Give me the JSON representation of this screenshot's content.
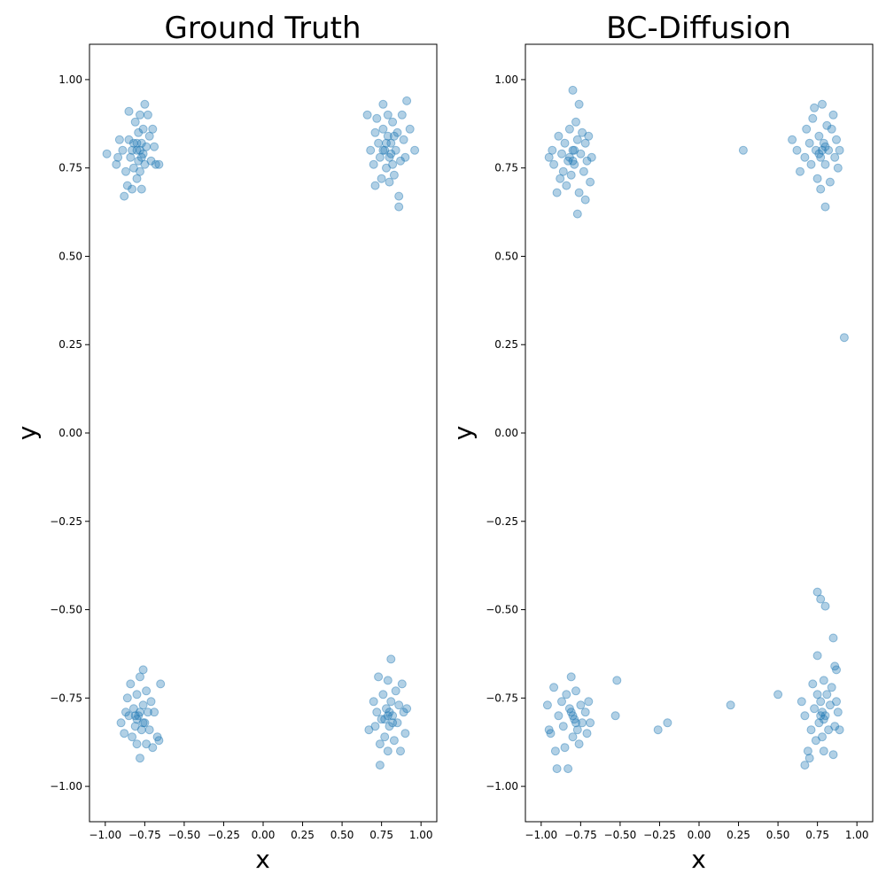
{
  "chart_data": [
    {
      "type": "scatter",
      "title": "Ground Truth",
      "xlabel": "x",
      "ylabel": "y",
      "xlim": [
        -1.1,
        1.1
      ],
      "ylim": [
        -1.1,
        1.1
      ],
      "xticks": [
        -1.0,
        -0.75,
        -0.5,
        -0.25,
        0.0,
        0.25,
        0.5,
        0.75,
        1.0
      ],
      "xtick_labels": [
        "−1.00",
        "−0.75",
        "−0.50",
        "−0.25",
        "0.00",
        "0.25",
        "0.50",
        "0.75",
        "1.00"
      ],
      "yticks": [
        -1.0,
        -0.75,
        -0.5,
        -0.25,
        0.0,
        0.25,
        0.5,
        0.75,
        1.0
      ],
      "ytick_labels": [
        "−1.00",
        "−0.75",
        "−0.50",
        "−0.25",
        "0.00",
        "0.25",
        "0.50",
        "0.75",
        "1.00"
      ],
      "grid": false,
      "color": "#1f77b4",
      "opacity": 0.35,
      "points": [
        [
          -0.99,
          0.79
        ],
        [
          -0.93,
          0.76
        ],
        [
          -0.92,
          0.78
        ],
        [
          -0.91,
          0.83
        ],
        [
          -0.89,
          0.8
        ],
        [
          -0.88,
          0.67
        ],
        [
          -0.87,
          0.74
        ],
        [
          -0.86,
          0.7
        ],
        [
          -0.85,
          0.91
        ],
        [
          -0.85,
          0.83
        ],
        [
          -0.84,
          0.78
        ],
        [
          -0.83,
          0.69
        ],
        [
          -0.82,
          0.82
        ],
        [
          -0.82,
          0.75
        ],
        [
          -0.81,
          0.88
        ],
        [
          -0.8,
          0.72
        ],
        [
          -0.8,
          0.8
        ],
        [
          -0.79,
          0.85
        ],
        [
          -0.79,
          0.77
        ],
        [
          -0.78,
          0.9
        ],
        [
          -0.78,
          0.74
        ],
        [
          -0.77,
          0.82
        ],
        [
          -0.77,
          0.69
        ],
        [
          -0.76,
          0.79
        ],
        [
          -0.76,
          0.86
        ],
        [
          -0.75,
          0.93
        ],
        [
          -0.75,
          0.76
        ],
        [
          -0.74,
          0.81
        ],
        [
          -0.73,
          0.9
        ],
        [
          -0.72,
          0.84
        ],
        [
          -0.71,
          0.77
        ],
        [
          -0.7,
          0.86
        ],
        [
          -0.69,
          0.81
        ],
        [
          -0.68,
          0.76
        ],
        [
          -0.66,
          0.76
        ],
        [
          -0.8,
          0.82
        ],
        [
          -0.78,
          0.8
        ],
        [
          -0.83,
          0.8
        ],
        [
          -0.77,
          0.78
        ],
        [
          0.66,
          0.9
        ],
        [
          0.68,
          0.8
        ],
        [
          0.7,
          0.76
        ],
        [
          0.71,
          0.85
        ],
        [
          0.71,
          0.7
        ],
        [
          0.72,
          0.89
        ],
        [
          0.73,
          0.82
        ],
        [
          0.74,
          0.78
        ],
        [
          0.75,
          0.72
        ],
        [
          0.76,
          0.86
        ],
        [
          0.76,
          0.93
        ],
        [
          0.77,
          0.8
        ],
        [
          0.78,
          0.75
        ],
        [
          0.79,
          0.9
        ],
        [
          0.79,
          0.84
        ],
        [
          0.8,
          0.78
        ],
        [
          0.8,
          0.71
        ],
        [
          0.81,
          0.82
        ],
        [
          0.82,
          0.88
        ],
        [
          0.82,
          0.76
        ],
        [
          0.83,
          0.73
        ],
        [
          0.84,
          0.8
        ],
        [
          0.85,
          0.85
        ],
        [
          0.86,
          0.67
        ],
        [
          0.86,
          0.64
        ],
        [
          0.87,
          0.77
        ],
        [
          0.88,
          0.9
        ],
        [
          0.89,
          0.83
        ],
        [
          0.9,
          0.78
        ],
        [
          0.91,
          0.94
        ],
        [
          0.93,
          0.86
        ],
        [
          0.96,
          0.8
        ],
        [
          0.78,
          0.82
        ],
        [
          0.81,
          0.79
        ],
        [
          0.83,
          0.84
        ],
        [
          0.76,
          0.8
        ],
        [
          -0.9,
          -0.82
        ],
        [
          -0.88,
          -0.85
        ],
        [
          -0.87,
          -0.79
        ],
        [
          -0.86,
          -0.75
        ],
        [
          -0.85,
          -0.8
        ],
        [
          -0.84,
          -0.71
        ],
        [
          -0.83,
          -0.86
        ],
        [
          -0.82,
          -0.78
        ],
        [
          -0.81,
          -0.83
        ],
        [
          -0.8,
          -0.74
        ],
        [
          -0.8,
          -0.88
        ],
        [
          -0.79,
          -0.8
        ],
        [
          -0.78,
          -0.69
        ],
        [
          -0.78,
          -0.92
        ],
        [
          -0.77,
          -0.84
        ],
        [
          -0.76,
          -0.77
        ],
        [
          -0.76,
          -0.67
        ],
        [
          -0.75,
          -0.82
        ],
        [
          -0.74,
          -0.88
        ],
        [
          -0.74,
          -0.73
        ],
        [
          -0.73,
          -0.79
        ],
        [
          -0.72,
          -0.84
        ],
        [
          -0.71,
          -0.76
        ],
        [
          -0.7,
          -0.89
        ],
        [
          -0.69,
          -0.79
        ],
        [
          -0.67,
          -0.86
        ],
        [
          -0.66,
          -0.87
        ],
        [
          -0.65,
          -0.71
        ],
        [
          -0.8,
          -0.81
        ],
        [
          -0.78,
          -0.79
        ],
        [
          -0.81,
          -0.8
        ],
        [
          -0.76,
          -0.82
        ],
        [
          0.67,
          -0.84
        ],
        [
          0.7,
          -0.76
        ],
        [
          0.71,
          -0.83
        ],
        [
          0.72,
          -0.79
        ],
        [
          0.73,
          -0.69
        ],
        [
          0.74,
          -0.88
        ],
        [
          0.74,
          -0.94
        ],
        [
          0.75,
          -0.81
        ],
        [
          0.76,
          -0.74
        ],
        [
          0.77,
          -0.86
        ],
        [
          0.78,
          -0.78
        ],
        [
          0.79,
          -0.7
        ],
        [
          0.79,
          -0.9
        ],
        [
          0.8,
          -0.83
        ],
        [
          0.81,
          -0.76
        ],
        [
          0.81,
          -0.64
        ],
        [
          0.82,
          -0.8
        ],
        [
          0.83,
          -0.87
        ],
        [
          0.84,
          -0.73
        ],
        [
          0.85,
          -0.82
        ],
        [
          0.86,
          -0.77
        ],
        [
          0.87,
          -0.9
        ],
        [
          0.88,
          -0.71
        ],
        [
          0.89,
          -0.79
        ],
        [
          0.9,
          -0.85
        ],
        [
          0.91,
          -0.78
        ],
        [
          0.79,
          -0.8
        ],
        [
          0.8,
          -0.79
        ],
        [
          0.77,
          -0.81
        ],
        [
          0.82,
          -0.82
        ]
      ]
    },
    {
      "type": "scatter",
      "title": "BC-Diffusion",
      "xlabel": "x",
      "ylabel": "y",
      "xlim": [
        -1.1,
        1.1
      ],
      "ylim": [
        -1.1,
        1.1
      ],
      "xticks": [
        -1.0,
        -0.75,
        -0.5,
        -0.25,
        0.0,
        0.25,
        0.5,
        0.75,
        1.0
      ],
      "xtick_labels": [
        "−1.00",
        "−0.75",
        "−0.50",
        "−0.25",
        "0.00",
        "0.25",
        "0.50",
        "0.75",
        "1.00"
      ],
      "yticks": [
        -1.0,
        -0.75,
        -0.5,
        -0.25,
        0.0,
        0.25,
        0.5,
        0.75,
        1.0
      ],
      "ytick_labels": [
        "−1.00",
        "−0.75",
        "−0.50",
        "−0.25",
        "0.00",
        "0.25",
        "0.50",
        "0.75",
        "1.00"
      ],
      "grid": false,
      "color": "#1f77b4",
      "opacity": 0.35,
      "points": [
        [
          -0.95,
          0.78
        ],
        [
          -0.93,
          0.8
        ],
        [
          -0.92,
          0.76
        ],
        [
          -0.9,
          0.68
        ],
        [
          -0.89,
          0.84
        ],
        [
          -0.88,
          0.72
        ],
        [
          -0.87,
          0.79
        ],
        [
          -0.86,
          0.74
        ],
        [
          -0.85,
          0.82
        ],
        [
          -0.84,
          0.7
        ],
        [
          -0.83,
          0.77
        ],
        [
          -0.82,
          0.86
        ],
        [
          -0.81,
          0.73
        ],
        [
          -0.8,
          0.97
        ],
        [
          -0.8,
          0.8
        ],
        [
          -0.79,
          0.76
        ],
        [
          -0.78,
          0.88
        ],
        [
          -0.77,
          0.83
        ],
        [
          -0.77,
          0.62
        ],
        [
          -0.76,
          0.93
        ],
        [
          -0.76,
          0.68
        ],
        [
          -0.75,
          0.79
        ],
        [
          -0.74,
          0.85
        ],
        [
          -0.73,
          0.74
        ],
        [
          -0.72,
          0.82
        ],
        [
          -0.72,
          0.66
        ],
        [
          -0.71,
          0.77
        ],
        [
          -0.7,
          0.84
        ],
        [
          -0.69,
          0.71
        ],
        [
          -0.68,
          0.78
        ],
        [
          -0.82,
          0.78
        ],
        [
          -0.79,
          0.8
        ],
        [
          -0.8,
          0.77
        ],
        [
          0.28,
          0.8
        ],
        [
          0.59,
          0.83
        ],
        [
          0.62,
          0.8
        ],
        [
          0.64,
          0.74
        ],
        [
          0.67,
          0.78
        ],
        [
          0.68,
          0.86
        ],
        [
          0.7,
          0.82
        ],
        [
          0.71,
          0.76
        ],
        [
          0.72,
          0.89
        ],
        [
          0.73,
          0.92
        ],
        [
          0.74,
          0.8
        ],
        [
          0.75,
          0.72
        ],
        [
          0.76,
          0.84
        ],
        [
          0.77,
          0.78
        ],
        [
          0.77,
          0.69
        ],
        [
          0.78,
          0.93
        ],
        [
          0.79,
          0.82
        ],
        [
          0.8,
          0.76
        ],
        [
          0.8,
          0.64
        ],
        [
          0.81,
          0.87
        ],
        [
          0.82,
          0.8
        ],
        [
          0.83,
          0.71
        ],
        [
          0.84,
          0.86
        ],
        [
          0.85,
          0.9
        ],
        [
          0.86,
          0.78
        ],
        [
          0.87,
          0.83
        ],
        [
          0.88,
          0.75
        ],
        [
          0.89,
          0.8
        ],
        [
          0.78,
          0.8
        ],
        [
          0.8,
          0.81
        ],
        [
          0.76,
          0.79
        ],
        [
          0.92,
          0.27
        ],
        [
          0.75,
          -0.45
        ],
        [
          0.77,
          -0.47
        ],
        [
          0.8,
          -0.49
        ],
        [
          0.85,
          -0.58
        ],
        [
          0.87,
          -0.67
        ],
        [
          -0.96,
          -0.77
        ],
        [
          -0.95,
          -0.84
        ],
        [
          -0.94,
          -0.85
        ],
        [
          -0.92,
          -0.72
        ],
        [
          -0.91,
          -0.9
        ],
        [
          -0.9,
          -0.95
        ],
        [
          -0.89,
          -0.8
        ],
        [
          -0.87,
          -0.76
        ],
        [
          -0.86,
          -0.83
        ],
        [
          -0.85,
          -0.89
        ],
        [
          -0.84,
          -0.74
        ],
        [
          -0.83,
          -0.95
        ],
        [
          -0.82,
          -0.78
        ],
        [
          -0.81,
          -0.69
        ],
        [
          -0.8,
          -0.86
        ],
        [
          -0.79,
          -0.81
        ],
        [
          -0.78,
          -0.73
        ],
        [
          -0.77,
          -0.84
        ],
        [
          -0.76,
          -0.88
        ],
        [
          -0.75,
          -0.77
        ],
        [
          -0.74,
          -0.82
        ],
        [
          -0.72,
          -0.79
        ],
        [
          -0.71,
          -0.85
        ],
        [
          -0.7,
          -0.76
        ],
        [
          -0.69,
          -0.82
        ],
        [
          -0.8,
          -0.8
        ],
        [
          -0.78,
          -0.82
        ],
        [
          -0.81,
          -0.79
        ],
        [
          -0.52,
          -0.7
        ],
        [
          -0.53,
          -0.8
        ],
        [
          -0.26,
          -0.84
        ],
        [
          -0.2,
          -0.82
        ],
        [
          0.2,
          -0.77
        ],
        [
          0.5,
          -0.74
        ],
        [
          0.65,
          -0.76
        ],
        [
          0.67,
          -0.94
        ],
        [
          0.67,
          -0.8
        ],
        [
          0.69,
          -0.9
        ],
        [
          0.7,
          -0.92
        ],
        [
          0.71,
          -0.84
        ],
        [
          0.72,
          -0.71
        ],
        [
          0.73,
          -0.78
        ],
        [
          0.74,
          -0.87
        ],
        [
          0.75,
          -0.63
        ],
        [
          0.75,
          -0.74
        ],
        [
          0.76,
          -0.82
        ],
        [
          0.77,
          -0.76
        ],
        [
          0.78,
          -0.86
        ],
        [
          0.79,
          -0.7
        ],
        [
          0.79,
          -0.9
        ],
        [
          0.8,
          -0.8
        ],
        [
          0.81,
          -0.74
        ],
        [
          0.82,
          -0.84
        ],
        [
          0.83,
          -0.77
        ],
        [
          0.84,
          -0.72
        ],
        [
          0.85,
          -0.91
        ],
        [
          0.86,
          -0.83
        ],
        [
          0.86,
          -0.66
        ],
        [
          0.87,
          -0.76
        ],
        [
          0.88,
          -0.79
        ],
        [
          0.89,
          -0.84
        ],
        [
          0.77,
          -0.8
        ],
        [
          0.79,
          -0.81
        ],
        [
          0.78,
          -0.79
        ]
      ]
    }
  ]
}
